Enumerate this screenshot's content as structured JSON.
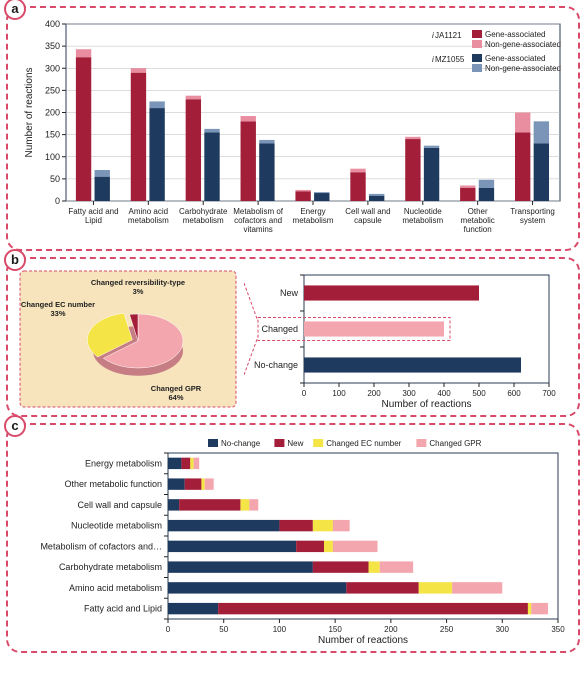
{
  "colors": {
    "maroon": "#a31e39",
    "pink": "#e98ea0",
    "navy": "#1f3a5f",
    "steel": "#7a95b8",
    "yellow": "#f4e446",
    "lightpink": "#f3a6ad",
    "pie_bg": "#f7e4bc",
    "border": "#d94a6a"
  },
  "panelA": {
    "ylabel": "Number of reactions",
    "ymax": 400,
    "ytick_step": 50,
    "categories": [
      "Fatty acid and|Lipid",
      "Amino acid|metabolism",
      "Carbohydrate|metabolism",
      "Metabolism of|cofactors and|vitamins",
      "Energy|metabolism",
      "Cell wall and|capsule",
      "Nucleotide|metabolism",
      "Other|metabolic|function",
      "Transporting|system"
    ],
    "legend": {
      "group1": "iJA1121",
      "group2": "iMZ1055",
      "gene": "Gene-associated",
      "nongene": "Non-gene-associated"
    },
    "series": {
      "iJA_gene": [
        325,
        290,
        230,
        180,
        22,
        65,
        140,
        30,
        155
      ],
      "iJA_nongene": [
        18,
        10,
        8,
        12,
        3,
        8,
        5,
        5,
        45
      ],
      "iMZ_gene": [
        55,
        210,
        155,
        130,
        18,
        12,
        120,
        30,
        130
      ],
      "iMZ_nongene": [
        15,
        15,
        8,
        8,
        2,
        4,
        5,
        18,
        50
      ]
    }
  },
  "panelB": {
    "pie": {
      "slices": [
        {
          "label": "Changed GPR",
          "pct": 64,
          "color": "#f3a6ad"
        },
        {
          "label": "Changed EC number",
          "pct": 33,
          "color": "#f4e446"
        },
        {
          "label": "Changed reversibility-type",
          "pct": 3,
          "color": "#a31e39"
        }
      ]
    },
    "hbar": {
      "xlabel": "Number of reactions",
      "xmax": 700,
      "xtick_step": 100,
      "bars": [
        {
          "label": "New",
          "value": 500,
          "color": "#a31e39"
        },
        {
          "label": "Changed",
          "value": 400,
          "color": "#f3a6ad"
        },
        {
          "label": "No-change",
          "value": 620,
          "color": "#1f3a5f"
        }
      ]
    }
  },
  "panelC": {
    "xlabel": "Number of reactions",
    "xmax": 350,
    "xtick_step": 50,
    "legend": [
      {
        "label": "No-change",
        "color": "#1f3a5f"
      },
      {
        "label": "New",
        "color": "#a31e39"
      },
      {
        "label": "Changed EC number",
        "color": "#f4e446"
      },
      {
        "label": "Changed GPR",
        "color": "#f3a6ad"
      }
    ],
    "categories": [
      {
        "label": "Energy metabolism",
        "seg": [
          12,
          8,
          3,
          5
        ]
      },
      {
        "label": "Other metabolic function",
        "seg": [
          15,
          15,
          3,
          8
        ]
      },
      {
        "label": "Cell wall and capsule",
        "seg": [
          10,
          55,
          8,
          8
        ]
      },
      {
        "label": "Nucleotide metabolism",
        "seg": [
          100,
          30,
          18,
          15
        ]
      },
      {
        "label": "Metabolism of cofactors and…",
        "seg": [
          115,
          25,
          8,
          40
        ]
      },
      {
        "label": "Carbohydrate metabolism",
        "seg": [
          130,
          50,
          10,
          30
        ]
      },
      {
        "label": "Amino acid metabolism",
        "seg": [
          160,
          65,
          30,
          45
        ]
      },
      {
        "label": "Fatty acid and Lipid",
        "seg": [
          45,
          278,
          3,
          15
        ]
      }
    ]
  }
}
